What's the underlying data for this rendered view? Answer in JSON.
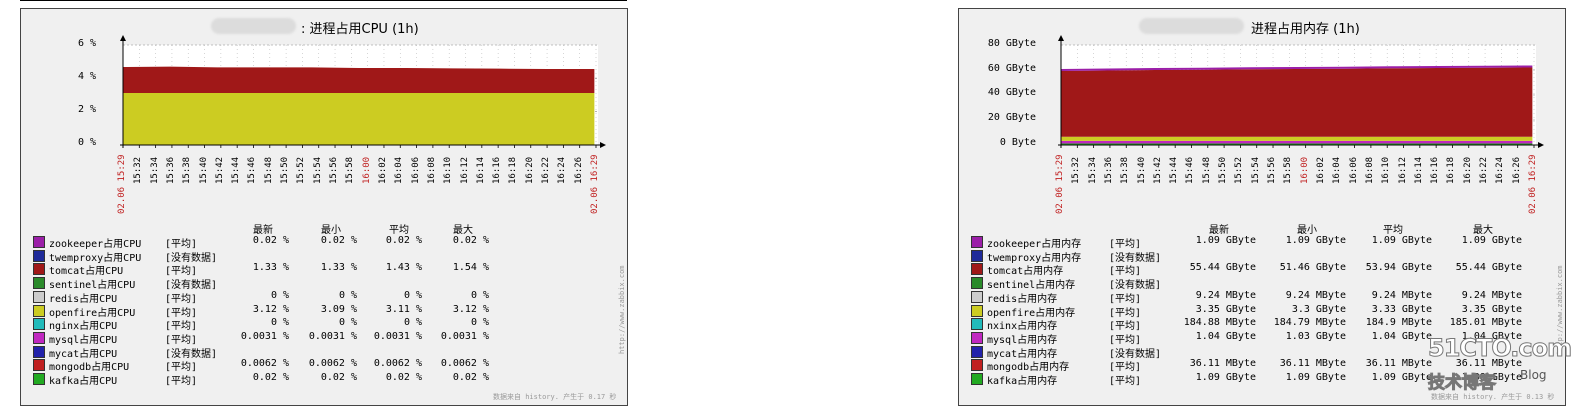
{
  "chart_data": [
    {
      "type": "area",
      "title": ": 进程占用CPU (1h)",
      "y_ticks": [
        "6 %",
        "4 %",
        "2 %",
        "0 %"
      ],
      "ylim": [
        0,
        6
      ],
      "x_ticks": [
        "02.06 15:29",
        "15:32",
        "15:34",
        "15:36",
        "15:38",
        "15:40",
        "15:42",
        "15:44",
        "15:46",
        "15:48",
        "15:50",
        "15:52",
        "15:54",
        "15:56",
        "15:58",
        "16:00",
        "16:02",
        "16:04",
        "16:06",
        "16:08",
        "16:10",
        "16:12",
        "16:14",
        "16:16",
        "16:18",
        "16:20",
        "16:22",
        "16:24",
        "16:26",
        "02.06 16:29"
      ],
      "x_highlight": [
        "02.06 15:29",
        "16:00",
        "02.06 16:29"
      ],
      "stack_color_yellow": "#cccc22",
      "stack_color_red": "#a01818",
      "yellow_value": 3.12,
      "red_top": [
        4.68,
        4.7,
        4.66,
        4.66,
        4.66,
        4.62,
        4.62,
        4.6,
        4.58,
        4.56,
        4.56
      ],
      "columns": [
        "最新",
        "最小",
        "平均",
        "最大"
      ],
      "legend": [
        {
          "name": "zookeeper占用CPU",
          "type": "[平均]",
          "color": "#9b1fa8",
          "values": [
            "0.02 %",
            "0.02 %",
            "0.02 %",
            "0.02 %"
          ]
        },
        {
          "name": "twemproxy占用CPU",
          "type": "[没有数据]",
          "color": "#1f2a99",
          "values": []
        },
        {
          "name": "tomcat占用CPU",
          "type": "[平均]",
          "color": "#a01818",
          "values": [
            "1.33 %",
            "1.33 %",
            "1.43 %",
            "1.54 %"
          ]
        },
        {
          "name": "sentinel占用CPU",
          "type": "[没有数据]",
          "color": "#2a8a2a",
          "values": []
        },
        {
          "name": "redis占用CPU",
          "type": "[平均]",
          "color": "#cccccc",
          "values": [
            "0 %",
            "0 %",
            "0 %",
            "0 %"
          ]
        },
        {
          "name": "openfire占用CPU",
          "type": "[平均]",
          "color": "#cccc22",
          "values": [
            "3.12 %",
            "3.09 %",
            "3.11 %",
            "3.12 %"
          ]
        },
        {
          "name": "nginx占用CPU",
          "type": "[平均]",
          "color": "#22bbbb",
          "values": [
            "0 %",
            "0 %",
            "0 %",
            "0 %"
          ]
        },
        {
          "name": "mysql占用CPU",
          "type": "[平均]",
          "color": "#c028c0",
          "values": [
            "0.0031 %",
            "0.0031 %",
            "0.0031 %",
            "0.0031 %"
          ]
        },
        {
          "name": "mycat占用CPU",
          "type": "[没有数据]",
          "color": "#2222aa",
          "values": []
        },
        {
          "name": "mongodb占用CPU",
          "type": "[平均]",
          "color": "#c02020",
          "values": [
            "0.0062 %",
            "0.0062 %",
            "0.0062 %",
            "0.0062 %"
          ]
        },
        {
          "name": "kafka占用CPU",
          "type": "[平均]",
          "color": "#22aa22",
          "values": [
            "0.02 %",
            "0.02 %",
            "0.02 %",
            "0.02 %"
          ]
        }
      ],
      "side_label": "http://www.zabbix.com",
      "footer": "数据来自 history. 产生于 0.17 秒"
    },
    {
      "type": "area",
      "title": "进程占用内存 (1h)",
      "y_ticks": [
        "80 GByte",
        "60 GByte",
        "40 GByte",
        "20 GByte",
        "0 Byte"
      ],
      "ylim": [
        0,
        80
      ],
      "x_ticks": [
        "02.06 15:29",
        "15:32",
        "15:34",
        "15:36",
        "15:38",
        "15:40",
        "15:42",
        "15:44",
        "15:46",
        "15:48",
        "15:50",
        "15:52",
        "15:54",
        "15:56",
        "15:58",
        "16:00",
        "16:02",
        "16:04",
        "16:06",
        "16:08",
        "16:10",
        "16:12",
        "16:14",
        "16:16",
        "16:18",
        "16:20",
        "16:22",
        "16:24",
        "16:26",
        "02.06 16:29"
      ],
      "x_highlight": [
        "02.06 15:29",
        "16:00",
        "02.06 16:29"
      ],
      "stack_color_red": "#a01818",
      "stack_color_purple": "#9b1fa8",
      "yellow_value": 6.6,
      "red_top": [
        59.2,
        59.6,
        60.0,
        60.2,
        60.6,
        60.8,
        61.0,
        61.4,
        61.6,
        61.8,
        62.0
      ],
      "columns": [
        "最新",
        "最小",
        "平均",
        "最大"
      ],
      "legend": [
        {
          "name": "zookeeper占用内存",
          "type": "[平均]",
          "color": "#9b1fa8",
          "values": [
            "1.09 GByte",
            "1.09 GByte",
            "1.09 GByte",
            "1.09 GByte"
          ]
        },
        {
          "name": "twemproxy占用内存",
          "type": "[没有数据]",
          "color": "#1f2a99",
          "values": []
        },
        {
          "name": "tomcat占用内存",
          "type": "[平均]",
          "color": "#a01818",
          "values": [
            "55.44 GByte",
            "51.46 GByte",
            "53.94 GByte",
            "55.44 GByte"
          ]
        },
        {
          "name": "sentinel占用内存",
          "type": "[没有数据]",
          "color": "#2a8a2a",
          "values": []
        },
        {
          "name": "redis占用内存",
          "type": "[平均]",
          "color": "#cccccc",
          "values": [
            "9.24 MByte",
            "9.24 MByte",
            "9.24 MByte",
            "9.24 MByte"
          ]
        },
        {
          "name": "openfire占用内存",
          "type": "[平均]",
          "color": "#cccc22",
          "values": [
            "3.35 GByte",
            "3.3 GByte",
            "3.33 GByte",
            "3.35 GByte"
          ]
        },
        {
          "name": "nxinx占用内存",
          "type": "[平均]",
          "color": "#22bbbb",
          "values": [
            "184.88 MByte",
            "184.79 MByte",
            "184.9 MByte",
            "185.01 MByte"
          ]
        },
        {
          "name": "mysql占用内存",
          "type": "[平均]",
          "color": "#c028c0",
          "values": [
            "1.04 GByte",
            "1.03 GByte",
            "1.04 GByte",
            "1.04 GByte"
          ]
        },
        {
          "name": "mycat占用内存",
          "type": "[没有数据]",
          "color": "#2222aa",
          "values": []
        },
        {
          "name": "mongodb占用内存",
          "type": "[平均]",
          "color": "#c02020",
          "values": [
            "36.11 MByte",
            "36.11 MByte",
            "36.11 MByte",
            "36.11 MByte"
          ]
        },
        {
          "name": "kafka占用内存",
          "type": "[平均]",
          "color": "#22aa22",
          "values": [
            "1.09 GByte",
            "1.09 GByte",
            "1.09 GByte",
            "1.09 GByte"
          ]
        }
      ],
      "side_label": "http://www.zabbix.com",
      "footer": "数据来自 history. 产生于 0.13 秒"
    }
  ],
  "watermark": {
    "site": "51CTO.com",
    "blog": "技术博客",
    "blog_suffix": "Blog"
  }
}
